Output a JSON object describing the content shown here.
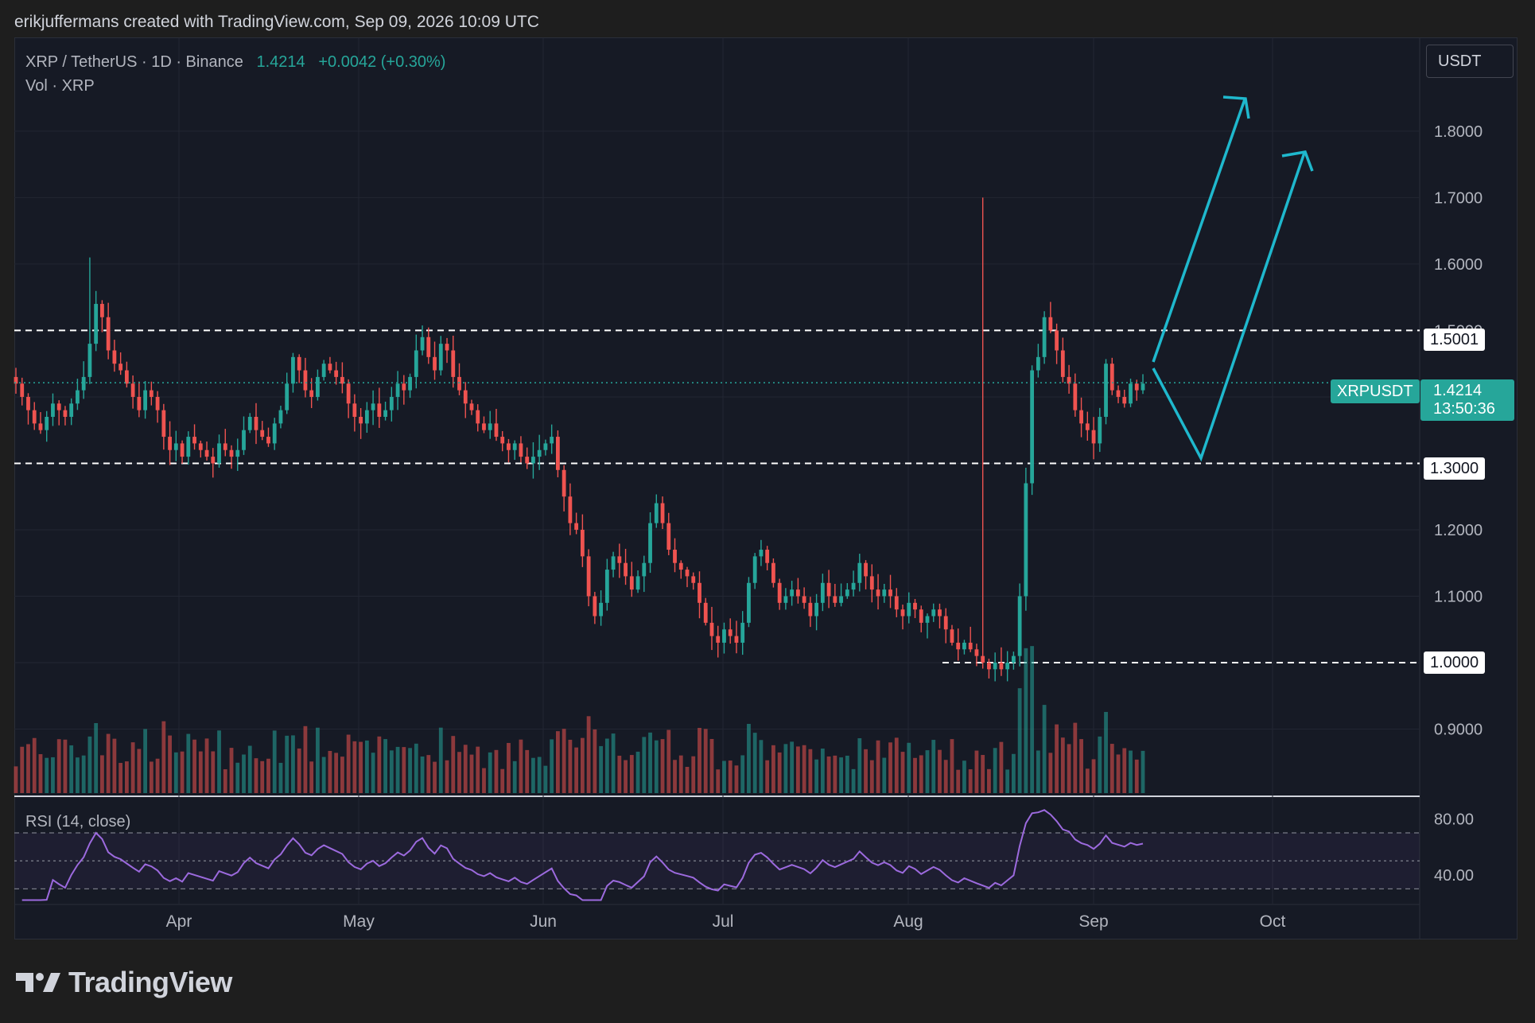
{
  "header": {
    "attribution": "erikjuffermans created with TradingView.com, Sep 09, 2026 10:09 UTC"
  },
  "legend": {
    "symbol_line": "XRP / TetherUS · 1D · Binance",
    "last_price": "1.4214",
    "change": "+0.0042 (+0.30%)",
    "volume_line": "Vol · XRP",
    "rsi_line": "RSI (14, close)"
  },
  "currency_button": "USDT",
  "price_tags": {
    "resistance": "1.5001",
    "support_1": "1.3000",
    "support_2": "1.0000",
    "live_symbol": "XRPUSDT",
    "live_price": "1.4214",
    "countdown": "13:50:36"
  },
  "footer": {
    "brand": "TradingView"
  },
  "colors": {
    "up": "#26a69a",
    "down": "#ef5350",
    "rsi": "#9c6ade",
    "arrow": "#1fb8cd",
    "background": "#161a25"
  },
  "chart_data": {
    "type": "candlestick",
    "symbol": "XRPUSDT",
    "timeframe": "1D",
    "y_axis": {
      "ticks": [
        "1.8000",
        "1.7000",
        "1.6000",
        "1.5000",
        "1.4000",
        "1.3000",
        "1.2000",
        "1.1000",
        "1.0000",
        "0.9000"
      ],
      "range": [
        0.8,
        1.94
      ]
    },
    "x_axis": {
      "ticks": [
        "Apr",
        "May",
        "Jun",
        "Jul",
        "Aug",
        "Sep",
        "Oct"
      ]
    },
    "horizontal_levels": [
      1.5001,
      1.3,
      1.0
    ],
    "close_series": [
      1.42,
      1.4,
      1.38,
      1.36,
      1.35,
      1.37,
      1.39,
      1.38,
      1.37,
      1.39,
      1.41,
      1.43,
      1.48,
      1.54,
      1.52,
      1.47,
      1.45,
      1.44,
      1.42,
      1.4,
      1.38,
      1.41,
      1.4,
      1.38,
      1.34,
      1.32,
      1.33,
      1.31,
      1.34,
      1.33,
      1.32,
      1.31,
      1.3,
      1.33,
      1.32,
      1.31,
      1.32,
      1.35,
      1.37,
      1.35,
      1.34,
      1.33,
      1.36,
      1.38,
      1.42,
      1.46,
      1.44,
      1.41,
      1.4,
      1.43,
      1.45,
      1.44,
      1.43,
      1.42,
      1.39,
      1.37,
      1.36,
      1.38,
      1.39,
      1.37,
      1.38,
      1.4,
      1.42,
      1.41,
      1.43,
      1.47,
      1.49,
      1.46,
      1.44,
      1.48,
      1.47,
      1.43,
      1.41,
      1.39,
      1.38,
      1.36,
      1.35,
      1.36,
      1.34,
      1.33,
      1.32,
      1.33,
      1.31,
      1.3,
      1.31,
      1.32,
      1.33,
      1.34,
      1.29,
      1.25,
      1.21,
      1.2,
      1.16,
      1.1,
      1.07,
      1.09,
      1.14,
      1.16,
      1.15,
      1.13,
      1.11,
      1.13,
      1.15,
      1.21,
      1.24,
      1.21,
      1.17,
      1.15,
      1.14,
      1.13,
      1.12,
      1.09,
      1.06,
      1.04,
      1.03,
      1.05,
      1.04,
      1.03,
      1.06,
      1.12,
      1.16,
      1.17,
      1.15,
      1.12,
      1.09,
      1.1,
      1.11,
      1.1,
      1.09,
      1.07,
      1.09,
      1.12,
      1.1,
      1.09,
      1.1,
      1.11,
      1.12,
      1.15,
      1.13,
      1.11,
      1.1,
      1.11,
      1.1,
      1.08,
      1.07,
      1.09,
      1.08,
      1.06,
      1.07,
      1.08,
      1.07,
      1.05,
      1.03,
      1.02,
      1.03,
      1.02,
      1.01,
      1.0,
      0.99,
      1.0,
      0.99,
      1.0,
      1.01,
      1.1,
      1.27,
      1.44,
      1.46,
      1.52,
      1.5,
      1.47,
      1.43,
      1.42,
      1.38,
      1.36,
      1.35,
      1.33,
      1.37,
      1.45,
      1.41,
      1.4,
      1.39,
      1.42,
      1.41,
      1.42
    ],
    "rsi": {
      "ticks": [
        "80.00",
        "40.00"
      ],
      "range": [
        20,
        95
      ],
      "upper": 70,
      "mid": 50,
      "lower": 30
    }
  }
}
